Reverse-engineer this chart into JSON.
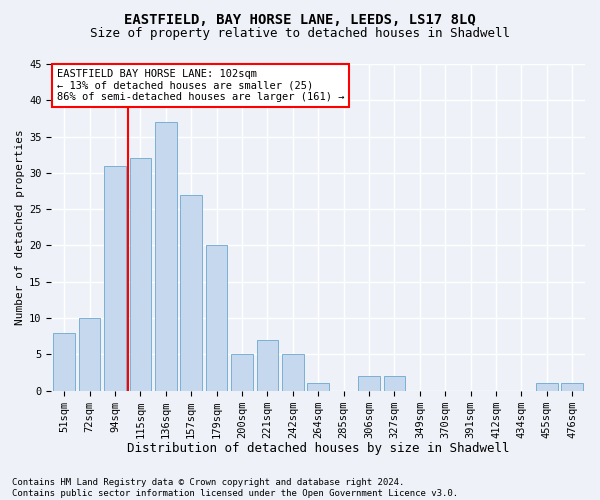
{
  "title1": "EASTFIELD, BAY HORSE LANE, LEEDS, LS17 8LQ",
  "title2": "Size of property relative to detached houses in Shadwell",
  "xlabel": "Distribution of detached houses by size in Shadwell",
  "ylabel": "Number of detached properties",
  "categories": [
    "51sqm",
    "72sqm",
    "94sqm",
    "115sqm",
    "136sqm",
    "157sqm",
    "179sqm",
    "200sqm",
    "221sqm",
    "242sqm",
    "264sqm",
    "285sqm",
    "306sqm",
    "327sqm",
    "349sqm",
    "370sqm",
    "391sqm",
    "412sqm",
    "434sqm",
    "455sqm",
    "476sqm"
  ],
  "values": [
    8,
    10,
    31,
    32,
    37,
    27,
    20,
    5,
    7,
    5,
    1,
    0,
    2,
    2,
    0,
    0,
    0,
    0,
    0,
    1,
    1
  ],
  "bar_color": "#c5d8ed",
  "bar_edge_color": "#7ab0d4",
  "vline_x_index": 2,
  "vline_color": "red",
  "annotation_text": "EASTFIELD BAY HORSE LANE: 102sqm\n← 13% of detached houses are smaller (25)\n86% of semi-detached houses are larger (161) →",
  "annotation_box_color": "white",
  "annotation_box_edge_color": "red",
  "ylim": [
    0,
    45
  ],
  "yticks": [
    0,
    5,
    10,
    15,
    20,
    25,
    30,
    35,
    40,
    45
  ],
  "footer1": "Contains HM Land Registry data © Crown copyright and database right 2024.",
  "footer2": "Contains public sector information licensed under the Open Government Licence v3.0.",
  "background_color": "#eef2f8",
  "grid_color": "white",
  "title1_fontsize": 10,
  "title2_fontsize": 9,
  "xlabel_fontsize": 9,
  "ylabel_fontsize": 8,
  "tick_fontsize": 7.5,
  "annotation_fontsize": 7.5,
  "footer_fontsize": 6.5
}
